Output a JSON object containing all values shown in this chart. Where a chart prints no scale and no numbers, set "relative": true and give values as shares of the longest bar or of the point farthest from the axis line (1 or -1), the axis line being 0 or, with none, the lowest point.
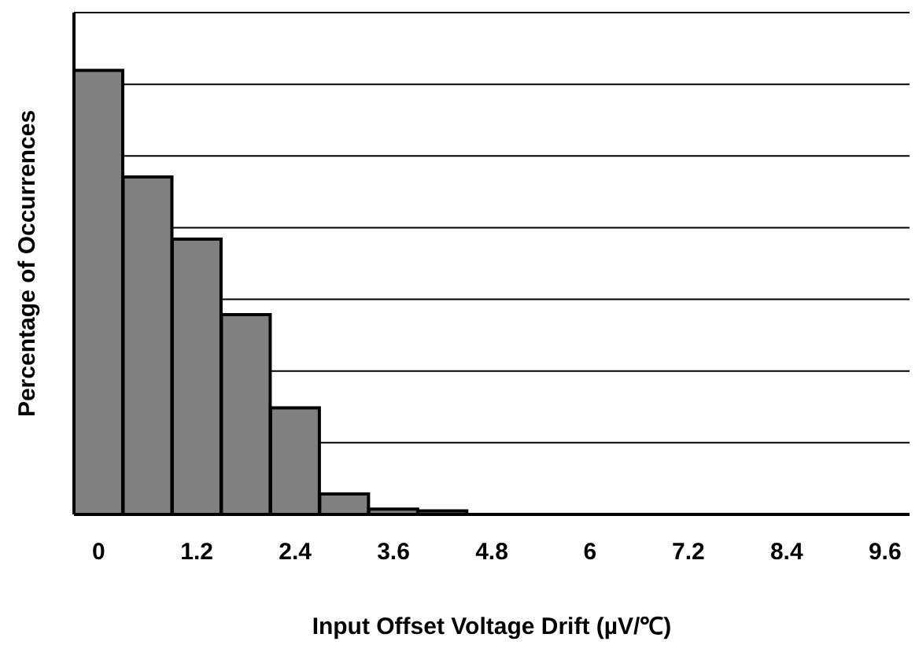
{
  "chart_data": {
    "type": "bar",
    "relative": true,
    "xlabel": "Input Offset Voltage Drift (µV/℃)",
    "ylabel": "Percentage of Occurrences",
    "categories": [
      "0",
      null,
      "1.2",
      null,
      "2.4",
      null,
      "3.6",
      null,
      "4.8",
      null,
      "6",
      null,
      "7.2",
      null,
      "8.4",
      null,
      "9.6"
    ],
    "values": [
      1,
      0.76,
      0.62,
      0.45,
      0.24,
      0.046,
      0.012,
      0.008,
      0,
      0,
      0,
      0,
      0,
      0,
      0,
      0,
      0
    ],
    "color": "#808080",
    "grid": "y"
  }
}
